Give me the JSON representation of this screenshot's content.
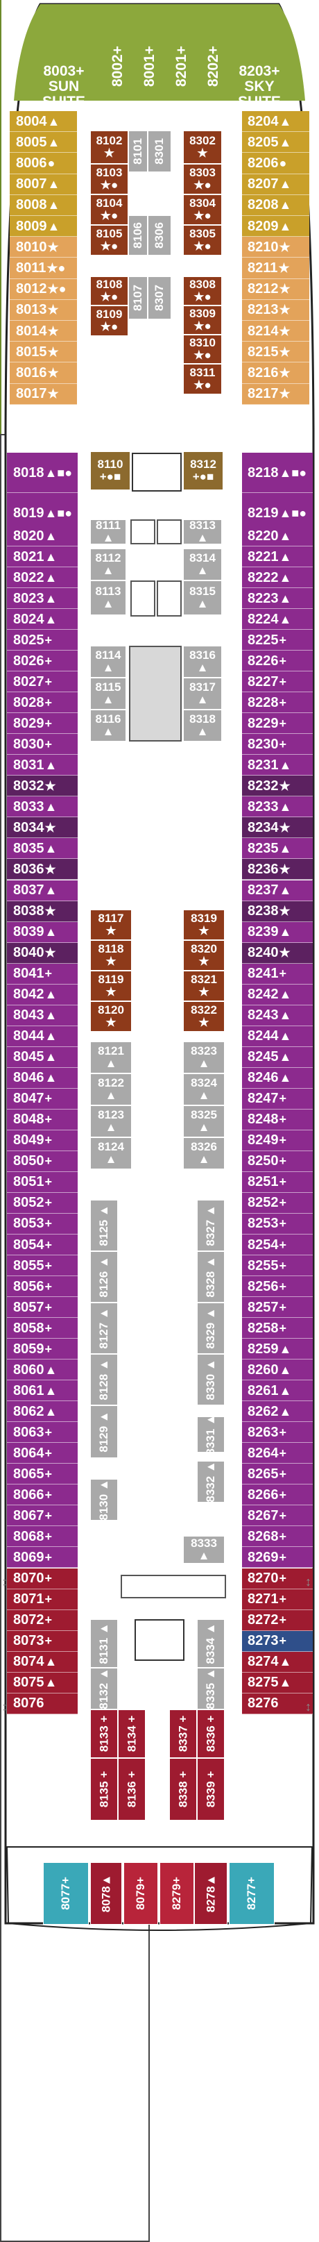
{
  "colors": {
    "green": "#8ca83c",
    "gold": "#c9a02a",
    "tan": "#e3a35a",
    "purple": "#8c2a8e",
    "plum": "#5c2160",
    "rust": "#8e3a1a",
    "gray": "#a9a9a9",
    "red": "#b8243a",
    "crimson": "#9e1b30",
    "navy": "#2f4f8a",
    "teal": "#3aa8b8",
    "olive": "#8c6a2e"
  },
  "suites_top": [
    {
      "id": "8003+",
      "sub1": "SUN",
      "sub2": "SUITE"
    },
    {
      "id": "8002+"
    },
    {
      "id": "8001+"
    },
    {
      "id": "8201+"
    },
    {
      "id": "8202+"
    },
    {
      "id": "8203+",
      "sub1": "SKY",
      "sub2": "SUITE"
    }
  ],
  "left_cabins": [
    {
      "n": "8004",
      "s": "▲",
      "c": "gold"
    },
    {
      "n": "8005",
      "s": "▲",
      "c": "gold"
    },
    {
      "n": "8006",
      "s": "●",
      "c": "gold"
    },
    {
      "n": "8007",
      "s": "▲",
      "c": "gold"
    },
    {
      "n": "8008",
      "s": "▲",
      "c": "gold"
    },
    {
      "n": "8009",
      "s": "▲",
      "c": "gold"
    },
    {
      "n": "8010",
      "s": "★",
      "c": "tan"
    },
    {
      "n": "8011",
      "s": "★●",
      "c": "tan"
    },
    {
      "n": "8012",
      "s": "★●",
      "c": "tan"
    },
    {
      "n": "8013",
      "s": "★",
      "c": "tan"
    },
    {
      "n": "8014",
      "s": "★",
      "c": "tan"
    },
    {
      "n": "8015",
      "s": "★",
      "c": "tan"
    },
    {
      "n": "8016",
      "s": "★",
      "c": "tan"
    },
    {
      "n": "8017",
      "s": "★",
      "c": "tan"
    },
    {
      "n": "8018",
      "s": "▲■●",
      "c": "purple"
    },
    {
      "n": "8019",
      "s": "▲■●",
      "c": "purple"
    },
    {
      "n": "8020",
      "s": "▲",
      "c": "purple"
    },
    {
      "n": "8021",
      "s": "▲",
      "c": "purple"
    },
    {
      "n": "8022",
      "s": "▲",
      "c": "purple"
    },
    {
      "n": "8023",
      "s": "▲",
      "c": "purple"
    },
    {
      "n": "8024",
      "s": "▲",
      "c": "purple"
    },
    {
      "n": "8025",
      "s": "+",
      "c": "purple"
    },
    {
      "n": "8026",
      "s": "+",
      "c": "purple"
    },
    {
      "n": "8027",
      "s": "+",
      "c": "purple"
    },
    {
      "n": "8028",
      "s": "+",
      "c": "purple"
    },
    {
      "n": "8029",
      "s": "+",
      "c": "purple"
    },
    {
      "n": "8030",
      "s": "+",
      "c": "purple"
    },
    {
      "n": "8031",
      "s": "▲",
      "c": "purple"
    },
    {
      "n": "8032",
      "s": "★",
      "c": "plum"
    },
    {
      "n": "8033",
      "s": "▲",
      "c": "purple"
    },
    {
      "n": "8034",
      "s": "★",
      "c": "plum"
    },
    {
      "n": "8035",
      "s": "▲",
      "c": "purple"
    },
    {
      "n": "8036",
      "s": "★",
      "c": "plum"
    },
    {
      "n": "8037",
      "s": "▲",
      "c": "purple"
    },
    {
      "n": "8038",
      "s": "★",
      "c": "plum"
    },
    {
      "n": "8039",
      "s": "▲",
      "c": "purple"
    },
    {
      "n": "8040",
      "s": "★",
      "c": "plum"
    },
    {
      "n": "8041",
      "s": "+",
      "c": "purple"
    },
    {
      "n": "8042",
      "s": "▲",
      "c": "purple"
    },
    {
      "n": "8043",
      "s": "▲",
      "c": "purple"
    },
    {
      "n": "8044",
      "s": "▲",
      "c": "purple"
    },
    {
      "n": "8045",
      "s": "▲",
      "c": "purple"
    },
    {
      "n": "8046",
      "s": "▲",
      "c": "purple"
    },
    {
      "n": "8047",
      "s": "+",
      "c": "purple"
    },
    {
      "n": "8048",
      "s": "+",
      "c": "purple"
    },
    {
      "n": "8049",
      "s": "+",
      "c": "purple"
    },
    {
      "n": "8050",
      "s": "+",
      "c": "purple"
    },
    {
      "n": "8051",
      "s": "+",
      "c": "purple"
    },
    {
      "n": "8052",
      "s": "+",
      "c": "purple"
    },
    {
      "n": "8053",
      "s": "+",
      "c": "purple"
    },
    {
      "n": "8054",
      "s": "+",
      "c": "purple"
    },
    {
      "n": "8055",
      "s": "+",
      "c": "purple"
    },
    {
      "n": "8056",
      "s": "+",
      "c": "purple"
    },
    {
      "n": "8057",
      "s": "+",
      "c": "purple"
    },
    {
      "n": "8058",
      "s": "+",
      "c": "purple"
    },
    {
      "n": "8059",
      "s": "+",
      "c": "purple"
    },
    {
      "n": "8060",
      "s": "▲",
      "c": "purple"
    },
    {
      "n": "8061",
      "s": "▲",
      "c": "purple"
    },
    {
      "n": "8062",
      "s": "▲",
      "c": "purple"
    },
    {
      "n": "8063",
      "s": "+",
      "c": "purple"
    },
    {
      "n": "8064",
      "s": "+",
      "c": "purple"
    },
    {
      "n": "8065",
      "s": "+",
      "c": "purple"
    },
    {
      "n": "8066",
      "s": "+",
      "c": "purple"
    },
    {
      "n": "8067",
      "s": "+",
      "c": "purple"
    },
    {
      "n": "8068",
      "s": "+",
      "c": "purple"
    },
    {
      "n": "8069",
      "s": "+",
      "c": "purple"
    },
    {
      "n": "8070",
      "s": "+",
      "c": "crimson"
    },
    {
      "n": "8071",
      "s": "+",
      "c": "crimson"
    },
    {
      "n": "8072",
      "s": "+",
      "c": "crimson"
    },
    {
      "n": "8073",
      "s": "+",
      "c": "crimson"
    },
    {
      "n": "8074",
      "s": "▲",
      "c": "crimson"
    },
    {
      "n": "8075",
      "s": "▲",
      "c": "crimson"
    },
    {
      "n": "8076",
      "s": "",
      "c": "crimson"
    }
  ],
  "right_cabins": [
    {
      "n": "8204",
      "s": "▲",
      "c": "gold"
    },
    {
      "n": "8205",
      "s": "▲",
      "c": "gold"
    },
    {
      "n": "8206",
      "s": "●",
      "c": "gold"
    },
    {
      "n": "8207",
      "s": "▲",
      "c": "gold"
    },
    {
      "n": "8208",
      "s": "▲",
      "c": "gold"
    },
    {
      "n": "8209",
      "s": "▲",
      "c": "gold"
    },
    {
      "n": "8210",
      "s": "★",
      "c": "tan"
    },
    {
      "n": "8211",
      "s": "★",
      "c": "tan"
    },
    {
      "n": "8212",
      "s": "★",
      "c": "tan"
    },
    {
      "n": "8213",
      "s": "★",
      "c": "tan"
    },
    {
      "n": "8214",
      "s": "★",
      "c": "tan"
    },
    {
      "n": "8215",
      "s": "★",
      "c": "tan"
    },
    {
      "n": "8216",
      "s": "★",
      "c": "tan"
    },
    {
      "n": "8217",
      "s": "★",
      "c": "tan"
    },
    {
      "n": "8218",
      "s": "▲■●",
      "c": "purple"
    },
    {
      "n": "8219",
      "s": "▲■●",
      "c": "purple"
    },
    {
      "n": "8220",
      "s": "▲",
      "c": "purple"
    },
    {
      "n": "8221",
      "s": "▲",
      "c": "purple"
    },
    {
      "n": "8222",
      "s": "▲",
      "c": "purple"
    },
    {
      "n": "8223",
      "s": "▲",
      "c": "purple"
    },
    {
      "n": "8224",
      "s": "▲",
      "c": "purple"
    },
    {
      "n": "8225",
      "s": "+",
      "c": "purple"
    },
    {
      "n": "8226",
      "s": "+",
      "c": "purple"
    },
    {
      "n": "8227",
      "s": "+",
      "c": "purple"
    },
    {
      "n": "8228",
      "s": "+",
      "c": "purple"
    },
    {
      "n": "8229",
      "s": "+",
      "c": "purple"
    },
    {
      "n": "8230",
      "s": "+",
      "c": "purple"
    },
    {
      "n": "8231",
      "s": "▲",
      "c": "purple"
    },
    {
      "n": "8232",
      "s": "★",
      "c": "plum"
    },
    {
      "n": "8233",
      "s": "▲",
      "c": "purple"
    },
    {
      "n": "8234",
      "s": "★",
      "c": "plum"
    },
    {
      "n": "8235",
      "s": "▲",
      "c": "purple"
    },
    {
      "n": "8236",
      "s": "★",
      "c": "plum"
    },
    {
      "n": "8237",
      "s": "▲",
      "c": "purple"
    },
    {
      "n": "8238",
      "s": "★",
      "c": "plum"
    },
    {
      "n": "8239",
      "s": "▲",
      "c": "purple"
    },
    {
      "n": "8240",
      "s": "★",
      "c": "plum"
    },
    {
      "n": "8241",
      "s": "+",
      "c": "purple"
    },
    {
      "n": "8242",
      "s": "▲",
      "c": "purple"
    },
    {
      "n": "8243",
      "s": "▲",
      "c": "purple"
    },
    {
      "n": "8244",
      "s": "▲",
      "c": "purple"
    },
    {
      "n": "8245",
      "s": "▲",
      "c": "purple"
    },
    {
      "n": "8246",
      "s": "▲",
      "c": "purple"
    },
    {
      "n": "8247",
      "s": "+",
      "c": "purple"
    },
    {
      "n": "8248",
      "s": "+",
      "c": "purple"
    },
    {
      "n": "8249",
      "s": "+",
      "c": "purple"
    },
    {
      "n": "8250",
      "s": "+",
      "c": "purple"
    },
    {
      "n": "8251",
      "s": "+",
      "c": "purple"
    },
    {
      "n": "8252",
      "s": "+",
      "c": "purple"
    },
    {
      "n": "8253",
      "s": "+",
      "c": "purple"
    },
    {
      "n": "8254",
      "s": "+",
      "c": "purple"
    },
    {
      "n": "8255",
      "s": "+",
      "c": "purple"
    },
    {
      "n": "8256",
      "s": "+",
      "c": "purple"
    },
    {
      "n": "8257",
      "s": "+",
      "c": "purple"
    },
    {
      "n": "8258",
      "s": "+",
      "c": "purple"
    },
    {
      "n": "8259",
      "s": "▲",
      "c": "purple"
    },
    {
      "n": "8260",
      "s": "▲",
      "c": "purple"
    },
    {
      "n": "8261",
      "s": "▲",
      "c": "purple"
    },
    {
      "n": "8262",
      "s": "▲",
      "c": "purple"
    },
    {
      "n": "8263",
      "s": "+",
      "c": "purple"
    },
    {
      "n": "8264",
      "s": "+",
      "c": "purple"
    },
    {
      "n": "8265",
      "s": "+",
      "c": "purple"
    },
    {
      "n": "8266",
      "s": "+",
      "c": "purple"
    },
    {
      "n": "8267",
      "s": "+",
      "c": "purple"
    },
    {
      "n": "8268",
      "s": "+",
      "c": "purple"
    },
    {
      "n": "8269",
      "s": "+",
      "c": "purple"
    },
    {
      "n": "8270",
      "s": "+",
      "c": "crimson"
    },
    {
      "n": "8271",
      "s": "+",
      "c": "crimson"
    },
    {
      "n": "8272",
      "s": "+",
      "c": "crimson"
    },
    {
      "n": "8273",
      "s": "+",
      "c": "navy"
    },
    {
      "n": "8274",
      "s": "▲",
      "c": "crimson"
    },
    {
      "n": "8275",
      "s": "▲",
      "c": "crimson"
    },
    {
      "n": "8276",
      "s": "",
      "c": "crimson"
    }
  ],
  "inner_cabins": [
    {
      "id": "8102",
      "s": "★",
      "c": "rust"
    },
    {
      "id": "8103",
      "s": "★●",
      "c": "rust"
    },
    {
      "id": "8104",
      "s": "★●",
      "c": "rust"
    },
    {
      "id": "8105",
      "s": "★●",
      "c": "rust"
    },
    {
      "id": "8101",
      "s": "",
      "c": "gray"
    },
    {
      "id": "8301",
      "s": "",
      "c": "gray"
    },
    {
      "id": "8106",
      "s": "",
      "c": "gray"
    },
    {
      "id": "8306",
      "s": "",
      "c": "gray"
    },
    {
      "id": "8302",
      "s": "★",
      "c": "rust"
    },
    {
      "id": "8303",
      "s": "★●",
      "c": "rust"
    },
    {
      "id": "8304",
      "s": "★●",
      "c": "rust"
    },
    {
      "id": "8305",
      "s": "★●",
      "c": "rust"
    },
    {
      "id": "8108",
      "s": "★●",
      "c": "rust"
    },
    {
      "id": "8109",
      "s": "★●",
      "c": "rust"
    },
    {
      "id": "8107",
      "s": "",
      "c": "gray"
    },
    {
      "id": "8307",
      "s": "",
      "c": "gray"
    },
    {
      "id": "8308",
      "s": "★●",
      "c": "rust"
    },
    {
      "id": "8309",
      "s": "★●",
      "c": "rust"
    },
    {
      "id": "8310",
      "s": "★●",
      "c": "rust"
    },
    {
      "id": "8311",
      "s": "★●",
      "c": "rust"
    },
    {
      "id": "8110",
      "s": "+●■",
      "c": "olive"
    },
    {
      "id": "8312",
      "s": "+●■",
      "c": "olive"
    },
    {
      "id": "8111",
      "s": "▲",
      "c": "gray"
    },
    {
      "id": "8112",
      "s": "▲",
      "c": "gray"
    },
    {
      "id": "8113",
      "s": "▲",
      "c": "gray"
    },
    {
      "id": "8313",
      "s": "▲",
      "c": "gray"
    },
    {
      "id": "8314",
      "s": "▲",
      "c": "gray"
    },
    {
      "id": "8315",
      "s": "▲",
      "c": "gray"
    },
    {
      "id": "8114",
      "s": "▲",
      "c": "gray"
    },
    {
      "id": "8115",
      "s": "▲",
      "c": "gray"
    },
    {
      "id": "8116",
      "s": "▲",
      "c": "gray"
    },
    {
      "id": "8316",
      "s": "▲",
      "c": "gray"
    },
    {
      "id": "8317",
      "s": "▲",
      "c": "gray"
    },
    {
      "id": "8318",
      "s": "▲",
      "c": "gray"
    },
    {
      "id": "8117",
      "s": "★",
      "c": "rust"
    },
    {
      "id": "8118",
      "s": "★",
      "c": "rust"
    },
    {
      "id": "8119",
      "s": "★",
      "c": "rust"
    },
    {
      "id": "8120",
      "s": "★",
      "c": "rust"
    },
    {
      "id": "8319",
      "s": "★",
      "c": "rust"
    },
    {
      "id": "8320",
      "s": "★",
      "c": "rust"
    },
    {
      "id": "8321",
      "s": "★",
      "c": "rust"
    },
    {
      "id": "8322",
      "s": "★",
      "c": "rust"
    },
    {
      "id": "8121",
      "s": "▲",
      "c": "gray"
    },
    {
      "id": "8122",
      "s": "▲",
      "c": "gray"
    },
    {
      "id": "8123",
      "s": "▲",
      "c": "gray"
    },
    {
      "id": "8124",
      "s": "▲",
      "c": "gray"
    },
    {
      "id": "8323",
      "s": "▲",
      "c": "gray"
    },
    {
      "id": "8324",
      "s": "▲",
      "c": "gray"
    },
    {
      "id": "8325",
      "s": "▲",
      "c": "gray"
    },
    {
      "id": "8326",
      "s": "▲",
      "c": "gray"
    },
    {
      "id": "8125",
      "s": "▲",
      "c": "gray"
    },
    {
      "id": "8126",
      "s": "▲",
      "c": "gray"
    },
    {
      "id": "8127",
      "s": "▲",
      "c": "gray"
    },
    {
      "id": "8128",
      "s": "▲",
      "c": "gray"
    },
    {
      "id": "8129",
      "s": "▲",
      "c": "gray"
    },
    {
      "id": "8130",
      "s": "▲",
      "c": "gray"
    },
    {
      "id": "8327",
      "s": "▲",
      "c": "gray"
    },
    {
      "id": "8328",
      "s": "▲",
      "c": "gray"
    },
    {
      "id": "8329",
      "s": "▲",
      "c": "gray"
    },
    {
      "id": "8330",
      "s": "▲",
      "c": "gray"
    },
    {
      "id": "8331",
      "s": "▲",
      "c": "gray"
    },
    {
      "id": "8332",
      "s": "▲",
      "c": "gray"
    },
    {
      "id": "8333",
      "s": "▲",
      "c": "gray"
    },
    {
      "id": "8131",
      "s": "▲",
      "c": "gray"
    },
    {
      "id": "8132",
      "s": "▲",
      "c": "gray"
    },
    {
      "id": "8133",
      "s": "+",
      "c": "crimson"
    },
    {
      "id": "8134",
      "s": "+",
      "c": "crimson"
    },
    {
      "id": "8135",
      "s": "+",
      "c": "crimson"
    },
    {
      "id": "8136",
      "s": "+",
      "c": "crimson"
    },
    {
      "id": "8334",
      "s": "▲",
      "c": "gray"
    },
    {
      "id": "8335",
      "s": "▲",
      "c": "gray"
    },
    {
      "id": "8336",
      "s": "+",
      "c": "crimson"
    },
    {
      "id": "8337",
      "s": "+",
      "c": "crimson"
    },
    {
      "id": "8338",
      "s": "+",
      "c": "crimson"
    },
    {
      "id": "8339",
      "s": "+",
      "c": "crimson"
    }
  ],
  "aft_cabins": [
    {
      "id": "8077",
      "s": "+",
      "c": "teal"
    },
    {
      "id": "8078",
      "s": "▲",
      "c": "crimson"
    },
    {
      "id": "8079",
      "s": "+",
      "c": "red"
    },
    {
      "id": "8279",
      "s": "+",
      "c": "red"
    },
    {
      "id": "8278",
      "s": "▲",
      "c": "crimson"
    },
    {
      "id": "8277",
      "s": "+",
      "c": "teal"
    }
  ]
}
